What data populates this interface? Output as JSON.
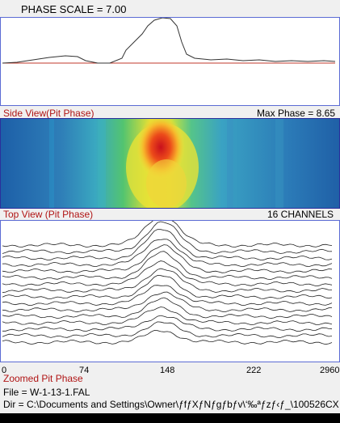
{
  "header": {
    "phase_scale": "PHASE SCALE =  7.00"
  },
  "side_view": {
    "label": "Side View(Pit Phase)",
    "max_phase": "Max Phase = 8.65"
  },
  "top_view": {
    "label": "Top View (Pit Phase)",
    "channels": "16 CHANNELS"
  },
  "zoomed": {
    "label": "Zoomed Pit Phase",
    "axis_ticks": [
      "0",
      "74",
      "148",
      "222",
      "2960"
    ]
  },
  "file": {
    "file_line": "File = W-1-13-1.FAL",
    "dir_line": "Dir = C:\\Documents and Settings\\Owner\\ƒfƒXƒNƒgƒbƒv\\‘‰ªƒzƒ‹ƒ_\\100526CX"
  },
  "colors": {
    "accent_red": "#b01414",
    "plot_border": "#5b6bd4",
    "baseline": "#c0392b"
  }
}
